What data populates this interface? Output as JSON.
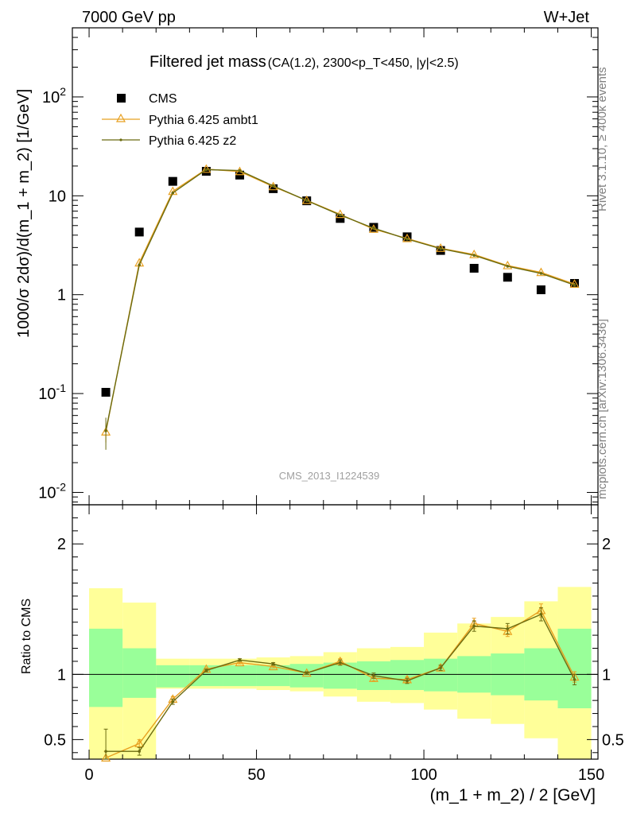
{
  "header": {
    "left": "7000 GeV pp",
    "right": "W+Jet"
  },
  "side_labels": {
    "rivet": "Rivet 3.1.10, ≥ 400k events",
    "mcplots": "mcplots.cern.ch [arXiv:1306.3436]"
  },
  "watermark": "CMS_2013_I1224539",
  "colors": {
    "cms": "#000000",
    "ambt1": "#e8a020",
    "z2": "#6b6b10",
    "band_inner": "#99ff99",
    "band_outer": "#ffff99"
  },
  "chart_data": {
    "type": "line",
    "title_main": "Filtered jet mass",
    "title_sub": "(CA(1.2), 2300<p_T<450, |y|<2.5)",
    "xlabel": "(m_1 + m_2) / 2 [GeV]",
    "xlim": [
      -5,
      152
    ],
    "xticks": [
      "0",
      "50",
      "100",
      "150"
    ],
    "main": {
      "ylabel": "1000/σ 2dσ)/d(m_1 + m_2) [1/GeV]",
      "yscale": "log",
      "ylim": [
        0.0075,
        500
      ],
      "yticks": [
        "10^-2",
        "10^-1",
        "1",
        "10",
        "10^2"
      ],
      "legend_position": "top-left",
      "series": [
        {
          "name": "CMS",
          "marker": "square",
          "x": [
            5,
            15,
            25,
            35,
            45,
            55,
            65,
            75,
            85,
            95,
            105,
            115,
            125,
            135,
            145
          ],
          "y": [
            0.103,
            4.3,
            14.0,
            17.7,
            16.2,
            11.8,
            8.9,
            5.9,
            4.8,
            3.85,
            2.8,
            1.85,
            1.5,
            1.12,
            1.3
          ]
        },
        {
          "name": "Pythia 6.425 ambt1",
          "marker": "triangle",
          "x": [
            5,
            15,
            25,
            35,
            45,
            55,
            65,
            75,
            85,
            95,
            105,
            115,
            125,
            135,
            145
          ],
          "y": [
            0.041,
            2.1,
            11.1,
            18.6,
            17.6,
            12.4,
            9.0,
            6.5,
            4.6,
            3.7,
            2.95,
            2.55,
            1.97,
            1.68,
            1.28
          ],
          "yerr": [
            0.009,
            0.05,
            0.2,
            0.2,
            0.2,
            0.15,
            0.1,
            0.08,
            0.06,
            0.05,
            0.05,
            0.05,
            0.04,
            0.04,
            0.03
          ]
        },
        {
          "name": "Pythia 6.425 z2",
          "marker": "dot",
          "x": [
            5,
            15,
            25,
            35,
            45,
            55,
            65,
            75,
            85,
            95,
            105,
            115,
            125,
            135,
            145
          ],
          "y": [
            0.042,
            2.0,
            10.7,
            18.4,
            18.0,
            12.6,
            8.95,
            6.4,
            4.7,
            3.65,
            2.92,
            2.5,
            1.94,
            1.64,
            1.25
          ],
          "yerr": [
            0.015,
            0.05,
            0.2,
            0.2,
            0.2,
            0.15,
            0.1,
            0.08,
            0.06,
            0.05,
            0.05,
            0.05,
            0.04,
            0.04,
            0.03
          ]
        }
      ]
    },
    "ratio": {
      "ylabel": "Ratio to CMS",
      "ylim": [
        0.35,
        2.3
      ],
      "yticks": [
        "0.5",
        "1",
        "2"
      ],
      "reference": 1,
      "bands": {
        "bin_edges": [
          0,
          10,
          20,
          30,
          40,
          50,
          60,
          70,
          80,
          90,
          100,
          110,
          120,
          130,
          140,
          150
        ],
        "inner": [
          [
            0.75,
            1.35
          ],
          [
            0.82,
            1.2
          ],
          [
            0.9,
            1.07
          ],
          [
            0.91,
            1.07
          ],
          [
            0.91,
            1.07
          ],
          [
            0.91,
            1.07
          ],
          [
            0.9,
            1.08
          ],
          [
            0.89,
            1.09
          ],
          [
            0.88,
            1.1
          ],
          [
            0.88,
            1.11
          ],
          [
            0.87,
            1.12
          ],
          [
            0.86,
            1.14
          ],
          [
            0.84,
            1.16
          ],
          [
            0.8,
            1.2
          ],
          [
            0.74,
            1.35
          ]
        ],
        "outer": [
          [
            0.35,
            1.66
          ],
          [
            0.35,
            1.55
          ],
          [
            0.89,
            1.12
          ],
          [
            0.89,
            1.12
          ],
          [
            0.89,
            1.12
          ],
          [
            0.88,
            1.13
          ],
          [
            0.87,
            1.14
          ],
          [
            0.83,
            1.17
          ],
          [
            0.79,
            1.2
          ],
          [
            0.78,
            1.21
          ],
          [
            0.73,
            1.32
          ],
          [
            0.66,
            1.39
          ],
          [
            0.62,
            1.44
          ],
          [
            0.51,
            1.56
          ],
          [
            0.35,
            1.67
          ]
        ]
      },
      "series": [
        {
          "name": "Pythia 6.425 ambt1",
          "x": [
            5,
            15,
            25,
            35,
            45,
            55,
            65,
            75,
            85,
            95,
            105,
            115,
            125,
            135,
            145
          ],
          "y": [
            0.36,
            0.47,
            0.81,
            1.04,
            1.09,
            1.06,
            1.01,
            1.1,
            0.97,
            0.96,
            1.05,
            1.39,
            1.33,
            1.49,
            0.98
          ],
          "yerr": [
            0.05,
            0.03,
            0.02,
            0.01,
            0.01,
            0.01,
            0.01,
            0.02,
            0.02,
            0.02,
            0.02,
            0.04,
            0.04,
            0.05,
            0.04
          ]
        },
        {
          "name": "Pythia 6.425 z2",
          "x": [
            5,
            15,
            25,
            35,
            45,
            55,
            65,
            75,
            85,
            95,
            105,
            115,
            125,
            135,
            145
          ],
          "y": [
            0.41,
            0.41,
            0.79,
            1.03,
            1.11,
            1.08,
            1.01,
            1.09,
            0.99,
            0.95,
            1.05,
            1.37,
            1.35,
            1.46,
            0.96
          ],
          "yerr": [
            0.17,
            0.03,
            0.02,
            0.01,
            0.01,
            0.01,
            0.01,
            0.02,
            0.02,
            0.02,
            0.02,
            0.04,
            0.04,
            0.05,
            0.04
          ]
        }
      ]
    }
  }
}
